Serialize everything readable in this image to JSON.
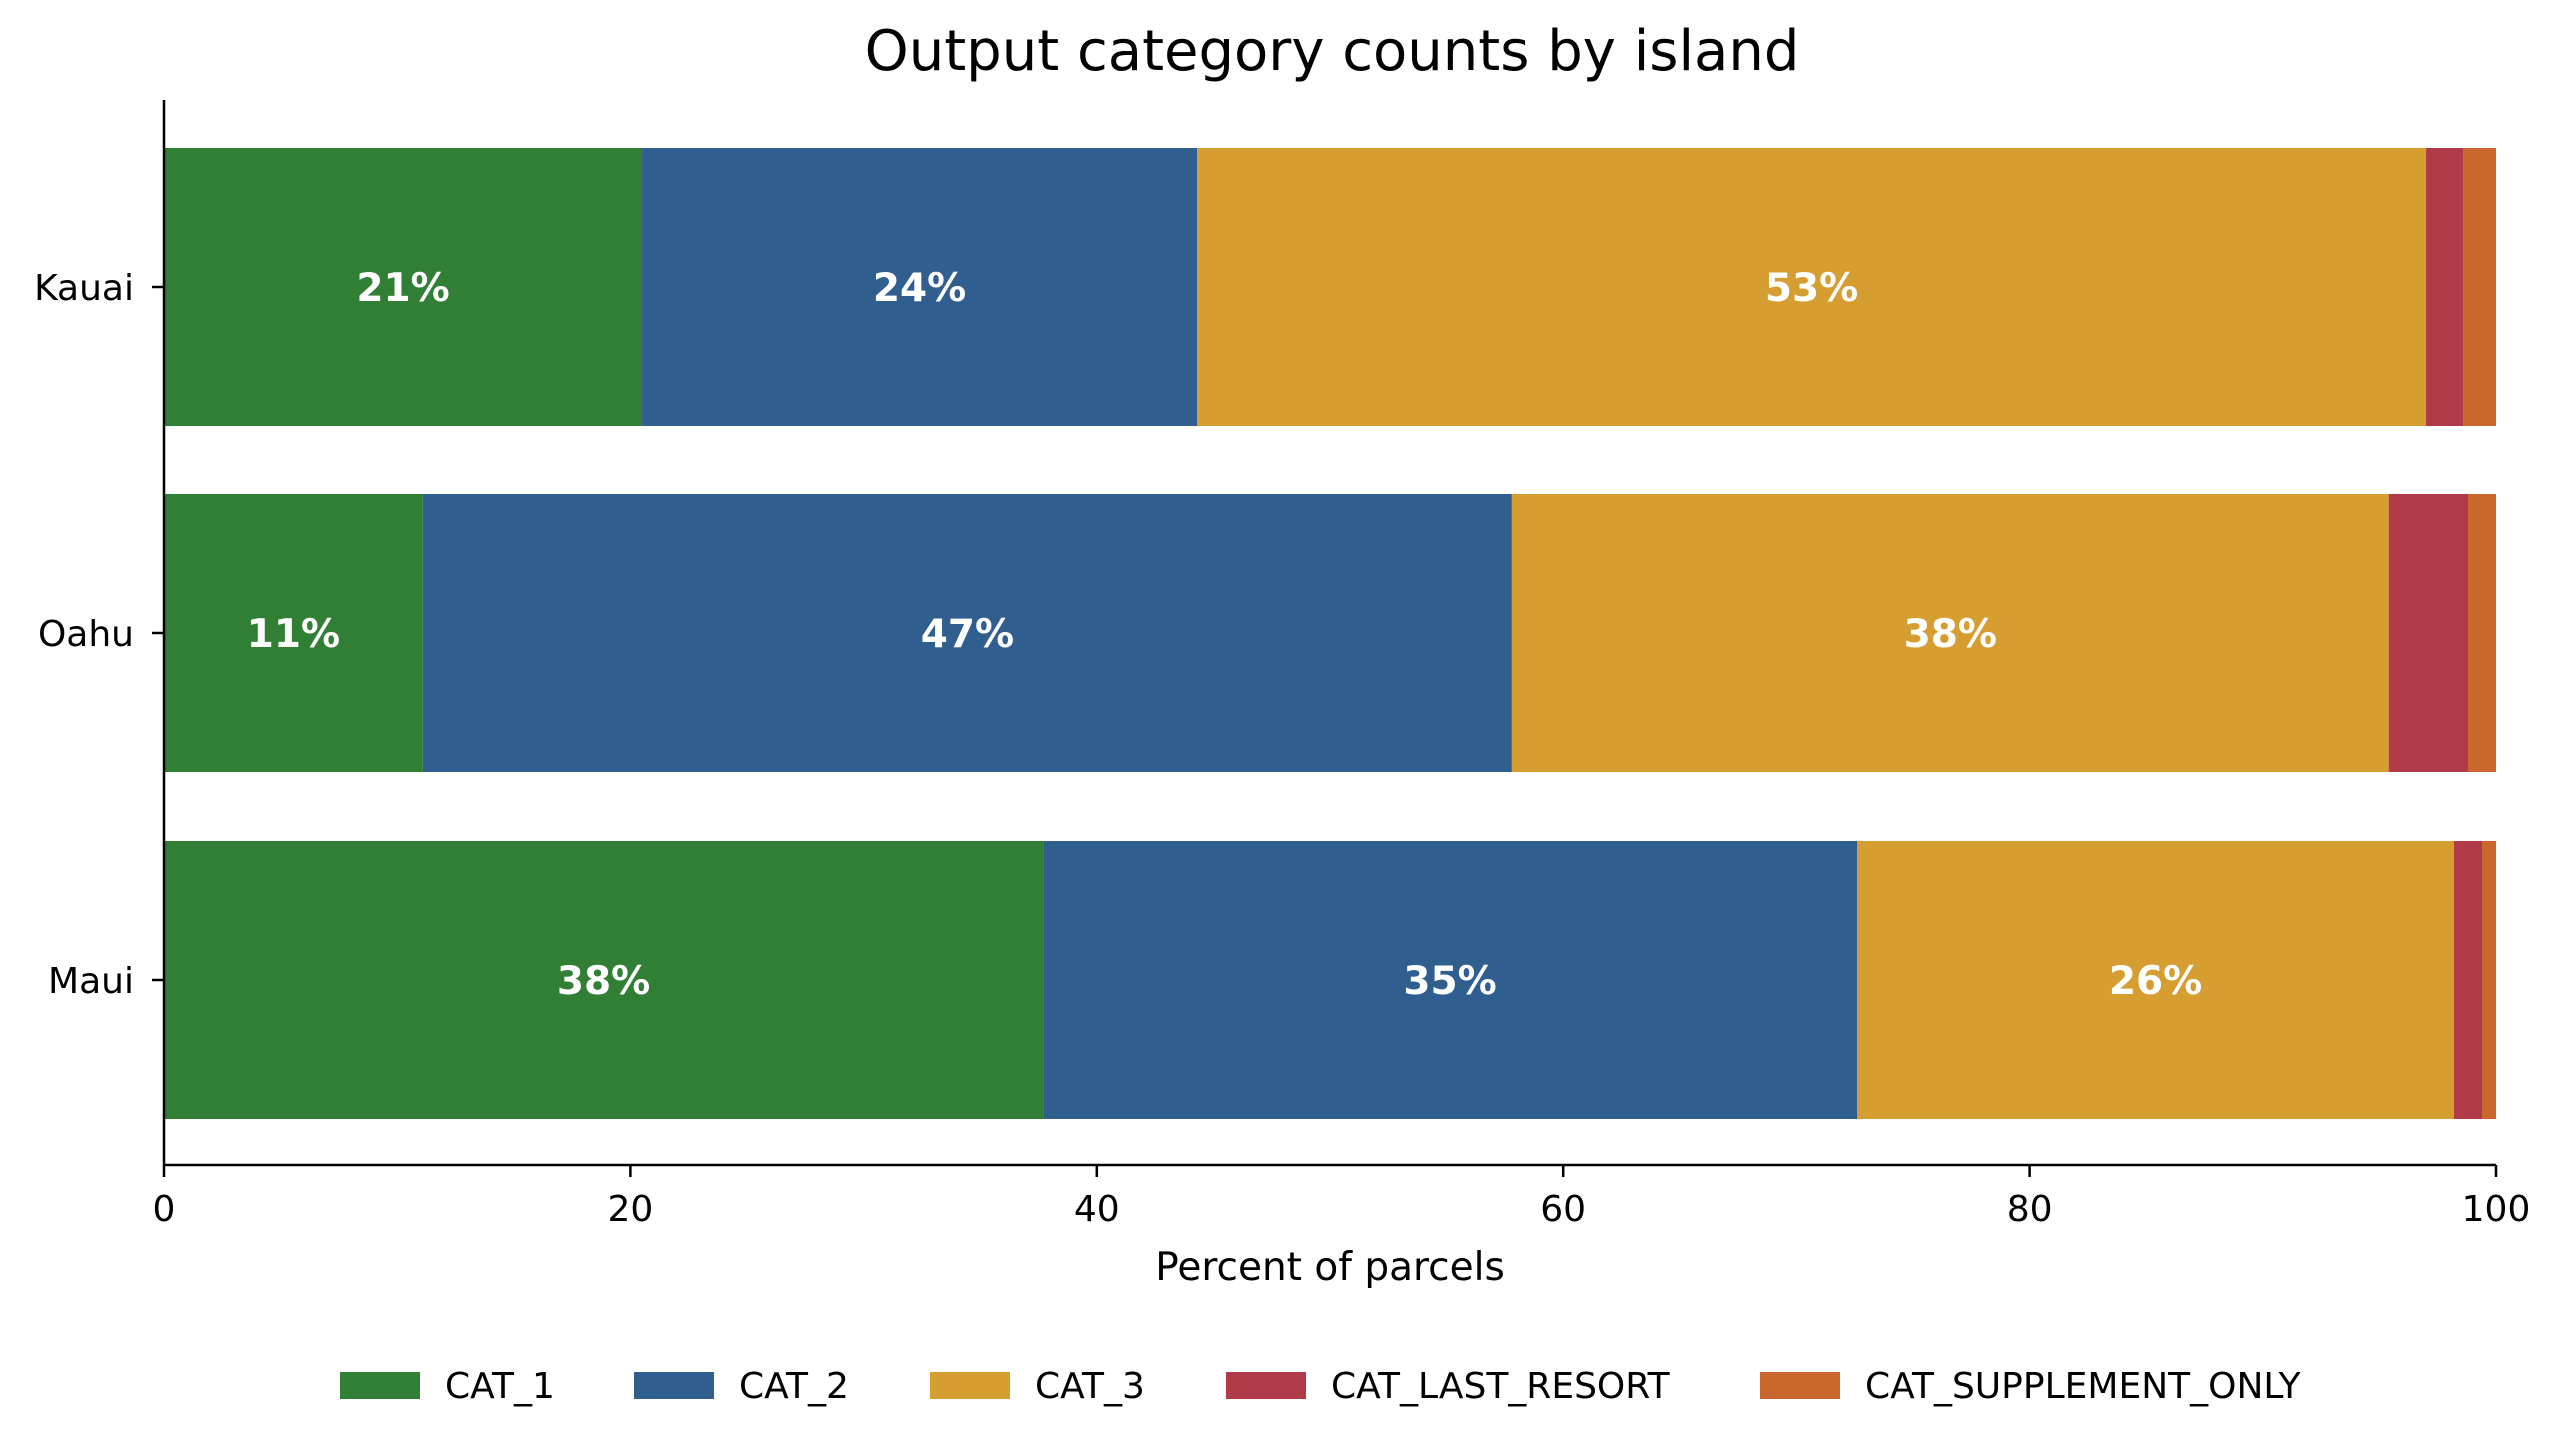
{
  "chart_data": {
    "type": "bar",
    "orientation": "horizontal",
    "stacked": true,
    "title": "Output category counts by island",
    "xlabel": "Percent of parcels",
    "ylabel": "",
    "xlim": [
      0,
      100
    ],
    "xticks": [
      0,
      20,
      40,
      60,
      80,
      100
    ],
    "categories": [
      "Kauai",
      "Oahu",
      "Maui"
    ],
    "series": [
      {
        "name": "CAT_1",
        "color": "#317e35",
        "values": [
          20.5,
          11.1,
          37.7
        ],
        "labels": [
          "21%",
          "11%",
          "38%"
        ]
      },
      {
        "name": "CAT_2",
        "color": "#305f8f",
        "values": [
          23.8,
          46.7,
          34.9
        ],
        "labels": [
          "24%",
          "47%",
          "35%"
        ]
      },
      {
        "name": "CAT_3",
        "color": "#d69e30",
        "values": [
          52.7,
          37.6,
          25.6
        ],
        "labels": [
          "53%",
          "38%",
          "26%"
        ]
      },
      {
        "name": "CAT_LAST_RESORT",
        "color": "#b13a48",
        "values": [
          1.6,
          3.4,
          1.2
        ],
        "labels": [
          "",
          "",
          ""
        ]
      },
      {
        "name": "CAT_SUPPLEMENT_ONLY",
        "color": "#c9672c",
        "values": [
          1.4,
          1.2,
          0.6
        ],
        "labels": [
          "",
          "",
          ""
        ]
      }
    ],
    "grid": false,
    "legend_position": "bottom-center"
  }
}
